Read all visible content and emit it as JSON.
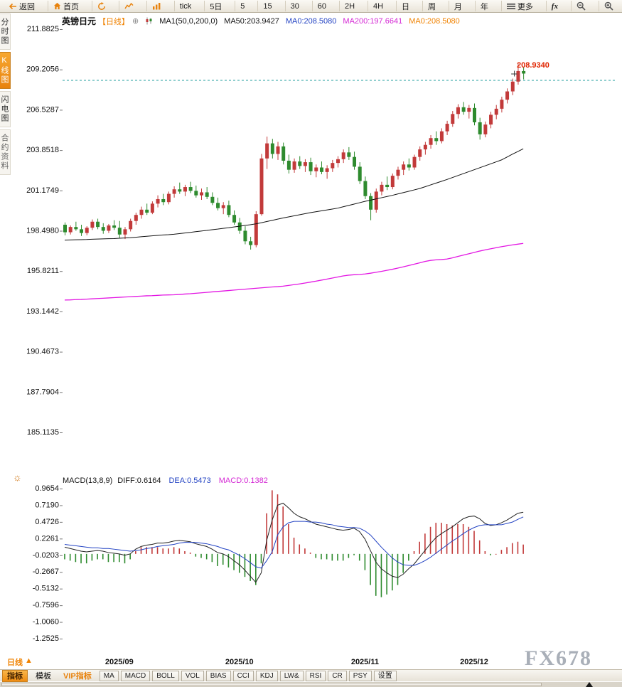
{
  "toolbar": {
    "back": "返回",
    "home": "首页",
    "tick": "tick",
    "day5": "5日",
    "periods": [
      "5",
      "15",
      "30",
      "60",
      "2H",
      "4H",
      "日",
      "周",
      "月",
      "年"
    ],
    "more": "更多",
    "fx": "fx"
  },
  "sidebar": {
    "items": [
      {
        "label": "分时图",
        "active": false
      },
      {
        "label": "K线图",
        "active": true
      },
      {
        "label": "闪电图",
        "active": false
      },
      {
        "label": "合约资料",
        "active": false
      }
    ]
  },
  "chart_header": {
    "symbol": "英镑日元",
    "period_tag": "【日线】",
    "plus": "⊕",
    "ma_config": "MA1(50,0,200,0)",
    "ma50": "MA50:203.9427",
    "ma0_blue": "MA0:208.5080",
    "ma200": "MA200:197.6641",
    "ma0_orange": "MA0:208.5080"
  },
  "price_marker": "208.9340",
  "macd_header": {
    "title": "MACD(13,8,9)",
    "diff": "DIFF:0.6164",
    "dea": "DEA:0.5473",
    "macd": "MACD:0.1382"
  },
  "bottom": {
    "period_label": "日线",
    "arrow": "▲",
    "tab_indicators": "指标",
    "tab_templates": "模板",
    "tab_vip": "VIP指标",
    "buttons": [
      "MA",
      "MACD",
      "BOLL",
      "VOL",
      "BIAS",
      "CCI",
      "KDJ",
      "LW&",
      "RSI",
      "CR",
      "PSY",
      "设置"
    ]
  },
  "watermark": "FX678",
  "sun_icon": "☼",
  "colors": {
    "accent": "#e8820c",
    "up": "#c23a3a",
    "down": "#2e8b2e",
    "blue": "#2343c3",
    "magenta": "#d427d4",
    "teal": "#1f9e9e",
    "ma50": "#111111",
    "ma200": "#e316e3",
    "axis_text": "#111111"
  },
  "chart_data": {
    "type": "candlestick",
    "title": "英镑日元 日线",
    "y_axis_main": [
      211.8825,
      209.2056,
      206.5287,
      203.8518,
      201.1749,
      198.498,
      195.8211,
      193.1442,
      190.4673,
      187.7904,
      185.1135
    ],
    "y_axis_macd": [
      0.9654,
      0.719,
      0.4726,
      0.2261,
      -0.0203,
      -0.2667,
      -0.5132,
      -0.7596,
      -1.006,
      -1.2525
    ],
    "x_labels": [
      "2025/09",
      "2025/10",
      "2025/11",
      "2025/12"
    ],
    "x_label_indices": [
      10,
      32,
      55,
      75
    ],
    "last_price": 208.934,
    "dotted_line_price": 208.508,
    "ma50_last": 203.9427,
    "ma200_last": 197.6641,
    "macd_params": "13,8,9",
    "diff_last": 0.6164,
    "dea_last": 0.5473,
    "macd_last": 0.1382,
    "candles": [
      [
        198.9,
        199.05,
        198.2,
        198.4
      ],
      [
        198.4,
        198.85,
        198.25,
        198.75
      ],
      [
        198.75,
        199.1,
        198.5,
        198.6
      ],
      [
        198.6,
        198.9,
        198.15,
        198.35
      ],
      [
        198.35,
        198.8,
        198.2,
        198.7
      ],
      [
        198.7,
        199.25,
        198.55,
        199.1
      ],
      [
        199.1,
        199.3,
        198.6,
        198.75
      ],
      [
        198.75,
        199.0,
        198.3,
        198.5
      ],
      [
        198.5,
        198.95,
        198.35,
        198.85
      ],
      [
        198.85,
        199.2,
        198.55,
        198.7
      ],
      [
        198.7,
        199.15,
        198.0,
        198.25
      ],
      [
        198.25,
        198.75,
        197.95,
        198.6
      ],
      [
        198.6,
        199.3,
        198.45,
        199.15
      ],
      [
        199.15,
        199.7,
        198.9,
        199.55
      ],
      [
        199.55,
        200.1,
        199.3,
        199.9
      ],
      [
        199.9,
        200.3,
        199.55,
        199.7
      ],
      [
        199.7,
        200.45,
        199.6,
        200.3
      ],
      [
        200.3,
        200.85,
        200.05,
        200.6
      ],
      [
        200.6,
        200.95,
        200.2,
        200.4
      ],
      [
        200.4,
        201.1,
        200.25,
        200.95
      ],
      [
        200.95,
        201.45,
        200.7,
        201.25
      ],
      [
        201.25,
        201.7,
        200.95,
        201.1
      ],
      [
        201.1,
        201.55,
        200.8,
        201.4
      ],
      [
        201.4,
        201.75,
        201.0,
        201.15
      ],
      [
        201.15,
        201.5,
        200.7,
        200.85
      ],
      [
        200.85,
        201.3,
        200.55,
        201.05
      ],
      [
        201.05,
        201.4,
        200.6,
        200.75
      ],
      [
        200.75,
        201.05,
        200.2,
        200.35
      ],
      [
        200.35,
        200.7,
        199.85,
        200.0
      ],
      [
        200.0,
        200.4,
        199.6,
        200.2
      ],
      [
        200.2,
        200.5,
        199.4,
        199.55
      ],
      [
        199.55,
        199.85,
        198.9,
        199.05
      ],
      [
        199.05,
        199.35,
        198.3,
        198.5
      ],
      [
        198.5,
        198.8,
        197.6,
        197.8
      ],
      [
        197.8,
        198.1,
        197.25,
        197.55
      ],
      [
        197.55,
        199.8,
        197.4,
        199.6
      ],
      [
        199.6,
        203.6,
        199.5,
        203.3
      ],
      [
        203.3,
        204.75,
        202.6,
        204.3
      ],
      [
        204.3,
        204.6,
        203.3,
        203.6
      ],
      [
        203.6,
        204.4,
        203.2,
        204.1
      ],
      [
        204.1,
        204.35,
        202.9,
        203.15
      ],
      [
        203.15,
        203.55,
        202.3,
        202.55
      ],
      [
        202.55,
        203.3,
        202.35,
        203.1
      ],
      [
        203.1,
        203.45,
        202.6,
        202.8
      ],
      [
        202.8,
        203.25,
        202.4,
        203.05
      ],
      [
        203.05,
        203.35,
        202.2,
        202.45
      ],
      [
        202.45,
        202.9,
        202.05,
        202.7
      ],
      [
        202.7,
        203.1,
        202.25,
        202.4
      ],
      [
        202.4,
        202.85,
        201.95,
        202.65
      ],
      [
        202.65,
        203.2,
        202.4,
        203.0
      ],
      [
        203.0,
        203.45,
        202.7,
        203.25
      ],
      [
        203.25,
        203.9,
        203.0,
        203.7
      ],
      [
        203.7,
        204.05,
        203.2,
        203.4
      ],
      [
        203.4,
        203.75,
        202.55,
        202.75
      ],
      [
        202.75,
        203.05,
        201.6,
        201.8
      ],
      [
        201.8,
        202.1,
        200.6,
        200.8
      ],
      [
        200.8,
        201.0,
        199.2,
        199.9
      ],
      [
        199.9,
        201.3,
        199.7,
        201.1
      ],
      [
        201.1,
        201.75,
        200.85,
        201.55
      ],
      [
        201.55,
        202.1,
        201.2,
        201.4
      ],
      [
        201.4,
        202.3,
        201.25,
        202.15
      ],
      [
        202.15,
        202.75,
        201.9,
        202.55
      ],
      [
        202.55,
        203.1,
        202.2,
        202.9
      ],
      [
        202.9,
        203.3,
        202.5,
        202.7
      ],
      [
        202.7,
        203.55,
        202.55,
        203.4
      ],
      [
        203.4,
        204.1,
        203.15,
        203.9
      ],
      [
        203.9,
        204.4,
        203.55,
        204.2
      ],
      [
        204.2,
        204.85,
        203.95,
        204.65
      ],
      [
        204.65,
        205.1,
        204.2,
        204.45
      ],
      [
        204.45,
        205.3,
        204.3,
        205.1
      ],
      [
        205.1,
        205.8,
        204.85,
        205.6
      ],
      [
        205.6,
        206.45,
        205.4,
        206.25
      ],
      [
        206.25,
        206.9,
        205.95,
        206.7
      ],
      [
        206.7,
        207.05,
        206.2,
        206.4
      ],
      [
        206.4,
        206.85,
        205.95,
        206.65
      ],
      [
        206.65,
        206.95,
        205.5,
        205.7
      ],
      [
        205.7,
        206.0,
        204.55,
        204.9
      ],
      [
        204.9,
        205.75,
        204.7,
        205.55
      ],
      [
        205.55,
        206.4,
        205.3,
        206.2
      ],
      [
        206.2,
        206.85,
        205.9,
        206.6
      ],
      [
        206.6,
        207.4,
        206.35,
        207.2
      ],
      [
        207.2,
        207.95,
        206.95,
        207.75
      ],
      [
        207.75,
        208.6,
        207.5,
        208.4
      ],
      [
        208.4,
        209.6,
        208.2,
        209.1
      ],
      [
        209.1,
        209.35,
        208.55,
        208.934
      ]
    ],
    "ma50": [
      197.88,
      197.89,
      197.9,
      197.91,
      197.92,
      197.94,
      197.95,
      197.96,
      197.97,
      197.98,
      198.0,
      198.02,
      198.04,
      198.07,
      198.1,
      198.13,
      198.16,
      198.19,
      198.22,
      198.24,
      198.27,
      198.31,
      198.35,
      198.39,
      198.44,
      198.48,
      198.52,
      198.57,
      198.61,
      198.66,
      198.7,
      198.75,
      198.8,
      198.85,
      198.9,
      198.96,
      199.03,
      199.11,
      199.19,
      199.27,
      199.35,
      199.42,
      199.49,
      199.56,
      199.63,
      199.7,
      199.76,
      199.82,
      199.88,
      199.94,
      200.0,
      200.09,
      200.18,
      200.27,
      200.36,
      200.45,
      200.53,
      200.61,
      200.69,
      200.77,
      200.85,
      200.94,
      201.03,
      201.12,
      201.21,
      201.3,
      201.42,
      201.54,
      201.66,
      201.78,
      201.9,
      202.03,
      202.16,
      202.29,
      202.42,
      202.55,
      202.68,
      202.81,
      202.94,
      203.07,
      203.2,
      203.39,
      203.58,
      203.76,
      203.94
    ],
    "ma200": [
      193.9,
      193.91,
      193.93,
      193.94,
      193.96,
      193.98,
      194.0,
      194.02,
      194.04,
      194.06,
      194.08,
      194.1,
      194.12,
      194.14,
      194.16,
      194.18,
      194.19,
      194.21,
      194.23,
      194.24,
      194.25,
      194.27,
      194.3,
      194.32,
      194.35,
      194.38,
      194.41,
      194.44,
      194.47,
      194.5,
      194.53,
      194.56,
      194.59,
      194.62,
      194.65,
      194.68,
      194.71,
      194.74,
      194.77,
      194.79,
      194.82,
      194.87,
      194.92,
      194.97,
      195.03,
      195.09,
      195.15,
      195.22,
      195.29,
      195.36,
      195.43,
      195.5,
      195.55,
      195.58,
      195.6,
      195.63,
      195.68,
      195.74,
      195.8,
      195.87,
      195.94,
      196.02,
      196.1,
      196.19,
      196.28,
      196.37,
      196.46,
      196.53,
      196.57,
      196.59,
      196.62,
      196.7,
      196.79,
      196.88,
      196.97,
      197.06,
      197.15,
      197.23,
      197.3,
      197.37,
      197.44,
      197.5,
      197.56,
      197.61,
      197.66
    ],
    "diff": [
      0.1,
      0.08,
      0.06,
      0.04,
      0.03,
      0.04,
      0.05,
      0.04,
      0.02,
      0.01,
      0.0,
      -0.02,
      0.0,
      0.07,
      0.11,
      0.13,
      0.14,
      0.16,
      0.16,
      0.17,
      0.19,
      0.2,
      0.19,
      0.18,
      0.15,
      0.13,
      0.11,
      0.07,
      0.02,
      0.0,
      -0.04,
      -0.1,
      -0.16,
      -0.24,
      -0.33,
      -0.42,
      -0.28,
      0.2,
      0.5,
      0.72,
      0.75,
      0.68,
      0.6,
      0.55,
      0.52,
      0.48,
      0.44,
      0.42,
      0.4,
      0.38,
      0.36,
      0.35,
      0.36,
      0.38,
      0.33,
      0.22,
      0.05,
      -0.12,
      -0.22,
      -0.28,
      -0.33,
      -0.35,
      -0.3,
      -0.22,
      -0.15,
      -0.05,
      0.05,
      0.15,
      0.24,
      0.3,
      0.35,
      0.4,
      0.46,
      0.52,
      0.55,
      0.56,
      0.52,
      0.45,
      0.42,
      0.43,
      0.46,
      0.5,
      0.55,
      0.6,
      0.6164
    ],
    "dea": [
      0.14,
      0.13,
      0.12,
      0.11,
      0.1,
      0.09,
      0.09,
      0.08,
      0.08,
      0.07,
      0.06,
      0.05,
      0.04,
      0.05,
      0.06,
      0.08,
      0.09,
      0.11,
      0.12,
      0.13,
      0.14,
      0.16,
      0.17,
      0.17,
      0.17,
      0.16,
      0.15,
      0.13,
      0.11,
      0.08,
      0.06,
      0.02,
      -0.02,
      -0.07,
      -0.13,
      -0.19,
      -0.21,
      -0.1,
      0.03,
      0.28,
      0.4,
      0.46,
      0.48,
      0.48,
      0.48,
      0.47,
      0.47,
      0.46,
      0.44,
      0.43,
      0.41,
      0.4,
      0.39,
      0.39,
      0.38,
      0.34,
      0.28,
      0.19,
      0.1,
      0.02,
      -0.06,
      -0.12,
      -0.16,
      -0.17,
      -0.17,
      -0.14,
      -0.1,
      -0.05,
      0.01,
      0.07,
      0.13,
      0.19,
      0.24,
      0.3,
      0.35,
      0.39,
      0.42,
      0.43,
      0.43,
      0.43,
      0.43,
      0.45,
      0.47,
      0.51,
      0.5473
    ],
    "macd_hist": [
      -0.08,
      -0.1,
      -0.12,
      -0.14,
      -0.14,
      -0.1,
      -0.08,
      -0.08,
      -0.12,
      -0.12,
      -0.12,
      -0.14,
      -0.08,
      0.04,
      0.1,
      0.1,
      0.1,
      0.1,
      0.08,
      0.08,
      0.1,
      0.08,
      0.04,
      0.02,
      -0.04,
      -0.06,
      -0.08,
      -0.12,
      -0.18,
      -0.16,
      -0.2,
      -0.24,
      -0.28,
      -0.34,
      -0.4,
      -0.46,
      -0.14,
      0.6,
      0.94,
      0.88,
      0.7,
      0.44,
      0.24,
      0.14,
      0.08,
      0.02,
      -0.06,
      -0.08,
      -0.08,
      -0.1,
      -0.1,
      -0.1,
      -0.06,
      -0.02,
      -0.1,
      -0.24,
      -0.46,
      -0.62,
      -0.64,
      -0.6,
      -0.54,
      -0.46,
      -0.28,
      -0.1,
      0.04,
      0.18,
      0.3,
      0.4,
      0.46,
      0.46,
      0.44,
      0.42,
      0.44,
      0.44,
      0.4,
      0.34,
      0.2,
      0.04,
      -0.02,
      0.0,
      0.06,
      0.1,
      0.16,
      0.18,
      0.1382
    ]
  }
}
